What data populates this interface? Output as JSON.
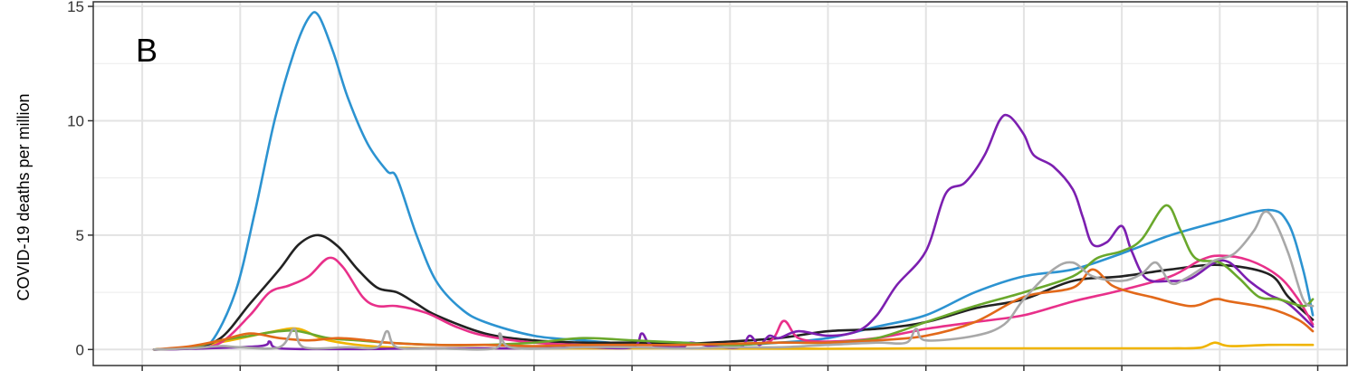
{
  "chart_data": {
    "type": "line",
    "panel_label": "B",
    "title": "",
    "xlabel": "",
    "ylabel": "COVID-19 deaths per million",
    "xlim": [
      0,
      12.8
    ],
    "ylim": [
      -0.7,
      15.2
    ],
    "yticks": [
      0,
      5,
      10,
      15
    ],
    "xticks": [
      0.5,
      1.5,
      2.5,
      3.5,
      4.5,
      5.5,
      6.5,
      7.5,
      8.5,
      9.5,
      10.5,
      11.5,
      12.5
    ],
    "x_tick_labels_shown": false,
    "grid": true,
    "legend": "none",
    "series": [
      {
        "color": "#f0b400",
        "points": [
          [
            0.62,
            0
          ],
          [
            1,
            0.1
          ],
          [
            1.4,
            0.4
          ],
          [
            1.85,
            0.8
          ],
          [
            2.1,
            0.9
          ],
          [
            2.4,
            0.4
          ],
          [
            3,
            0.1
          ],
          [
            4,
            0.05
          ],
          [
            6,
            0.05
          ],
          [
            7.5,
            0.03
          ],
          [
            8.5,
            0.05
          ],
          [
            10,
            0.05
          ],
          [
            11,
            0.05
          ],
          [
            11.3,
            0.08
          ],
          [
            11.45,
            0.3
          ],
          [
            11.6,
            0.15
          ],
          [
            12,
            0.2
          ],
          [
            12.45,
            0.2
          ]
        ]
      },
      {
        "color": "#2c93d1",
        "points": [
          [
            0.62,
            0
          ],
          [
            1,
            0.05
          ],
          [
            1.2,
            0.3
          ],
          [
            1.45,
            2.5
          ],
          [
            1.65,
            6
          ],
          [
            1.85,
            10
          ],
          [
            2.05,
            13
          ],
          [
            2.2,
            14.5
          ],
          [
            2.3,
            14.6
          ],
          [
            2.45,
            13
          ],
          [
            2.6,
            11
          ],
          [
            2.8,
            9
          ],
          [
            3,
            7.8
          ],
          [
            3.1,
            7.5
          ],
          [
            3.3,
            5
          ],
          [
            3.5,
            3
          ],
          [
            3.75,
            1.8
          ],
          [
            4,
            1.2
          ],
          [
            4.5,
            0.6
          ],
          [
            5,
            0.4
          ],
          [
            5.5,
            0.25
          ],
          [
            6,
            0.3
          ],
          [
            6.5,
            0.2
          ],
          [
            7,
            0.3
          ],
          [
            7.5,
            0.5
          ],
          [
            8,
            1
          ],
          [
            8.5,
            1.5
          ],
          [
            9,
            2.5
          ],
          [
            9.5,
            3.2
          ],
          [
            10,
            3.5
          ],
          [
            10.5,
            4.2
          ],
          [
            11,
            5
          ],
          [
            11.5,
            5.6
          ],
          [
            12,
            6.1
          ],
          [
            12.2,
            5.5
          ],
          [
            12.35,
            3.5
          ],
          [
            12.45,
            1.5
          ]
        ]
      },
      {
        "color": "#222222",
        "points": [
          [
            0.62,
            0
          ],
          [
            1,
            0.1
          ],
          [
            1.3,
            0.5
          ],
          [
            1.6,
            2
          ],
          [
            1.9,
            3.5
          ],
          [
            2.1,
            4.6
          ],
          [
            2.3,
            5
          ],
          [
            2.5,
            4.5
          ],
          [
            2.7,
            3.5
          ],
          [
            2.9,
            2.7
          ],
          [
            3.1,
            2.5
          ],
          [
            3.3,
            2
          ],
          [
            3.5,
            1.5
          ],
          [
            4,
            0.7
          ],
          [
            4.5,
            0.4
          ],
          [
            5,
            0.3
          ],
          [
            5.5,
            0.3
          ],
          [
            6,
            0.25
          ],
          [
            6.5,
            0.35
          ],
          [
            7,
            0.5
          ],
          [
            7.5,
            0.8
          ],
          [
            8,
            0.9
          ],
          [
            8.5,
            1.2
          ],
          [
            9,
            1.8
          ],
          [
            9.5,
            2.2
          ],
          [
            10,
            3
          ],
          [
            10.5,
            3.2
          ],
          [
            11,
            3.5
          ],
          [
            11.5,
            3.7
          ],
          [
            12,
            3.3
          ],
          [
            12.2,
            2.3
          ],
          [
            12.45,
            1.3
          ]
        ]
      },
      {
        "color": "#e8308a",
        "points": [
          [
            0.62,
            0
          ],
          [
            1,
            0.05
          ],
          [
            1.3,
            0.3
          ],
          [
            1.6,
            1.5
          ],
          [
            1.8,
            2.5
          ],
          [
            2,
            2.8
          ],
          [
            2.2,
            3.2
          ],
          [
            2.4,
            4
          ],
          [
            2.55,
            3.6
          ],
          [
            2.75,
            2.3
          ],
          [
            2.9,
            1.9
          ],
          [
            3.1,
            1.9
          ],
          [
            3.4,
            1.6
          ],
          [
            3.7,
            1
          ],
          [
            4,
            0.6
          ],
          [
            4.5,
            0.3
          ],
          [
            5,
            0.2
          ],
          [
            5.5,
            0.2
          ],
          [
            6,
            0.2
          ],
          [
            6.5,
            0.25
          ],
          [
            6.9,
            0.35
          ],
          [
            7.05,
            1.25
          ],
          [
            7.2,
            0.5
          ],
          [
            7.5,
            0.35
          ],
          [
            8,
            0.5
          ],
          [
            8.5,
            0.9
          ],
          [
            9,
            1.2
          ],
          [
            9.5,
            1.5
          ],
          [
            10,
            2.1
          ],
          [
            10.5,
            2.6
          ],
          [
            11,
            3.2
          ],
          [
            11.3,
            3.9
          ],
          [
            11.5,
            4.1
          ],
          [
            11.8,
            3.9
          ],
          [
            12.1,
            3.2
          ],
          [
            12.3,
            2.2
          ],
          [
            12.45,
            1.1
          ]
        ]
      },
      {
        "color": "#7c1fb0",
        "points": [
          [
            0.62,
            0
          ],
          [
            1,
            0.03
          ],
          [
            1.7,
            0.15
          ],
          [
            1.8,
            0.35
          ],
          [
            1.9,
            0.05
          ],
          [
            2.5,
            0.02
          ],
          [
            3,
            0.03
          ],
          [
            3.5,
            0.05
          ],
          [
            4,
            0.05
          ],
          [
            4.5,
            0.05
          ],
          [
            5,
            0.1
          ],
          [
            5.5,
            0.1
          ],
          [
            5.6,
            0.7
          ],
          [
            5.7,
            0.2
          ],
          [
            6,
            0.1
          ],
          [
            6.1,
            0.3
          ],
          [
            6.3,
            0.15
          ],
          [
            6.6,
            0.1
          ],
          [
            6.7,
            0.6
          ],
          [
            6.8,
            0.2
          ],
          [
            6.9,
            0.6
          ],
          [
            7,
            0.5
          ],
          [
            7.2,
            0.8
          ],
          [
            7.5,
            0.6
          ],
          [
            7.8,
            0.8
          ],
          [
            8,
            1.5
          ],
          [
            8.2,
            2.8
          ],
          [
            8.5,
            4.3
          ],
          [
            8.7,
            6.8
          ],
          [
            8.9,
            7.3
          ],
          [
            9.1,
            8.5
          ],
          [
            9.25,
            10
          ],
          [
            9.35,
            10.2
          ],
          [
            9.5,
            9.4
          ],
          [
            9.6,
            8.5
          ],
          [
            9.8,
            8
          ],
          [
            10,
            7
          ],
          [
            10.1,
            5.8
          ],
          [
            10.2,
            4.6
          ],
          [
            10.35,
            4.7
          ],
          [
            10.5,
            5.4
          ],
          [
            10.6,
            4.3
          ],
          [
            10.75,
            3.1
          ],
          [
            11,
            3
          ],
          [
            11.2,
            3.1
          ],
          [
            11.45,
            3.8
          ],
          [
            11.6,
            3.8
          ],
          [
            11.8,
            3
          ],
          [
            12,
            2.4
          ],
          [
            12.2,
            2
          ],
          [
            12.45,
            1
          ]
        ]
      },
      {
        "color": "#6aa82c",
        "points": [
          [
            0.62,
            0
          ],
          [
            1,
            0.1
          ],
          [
            1.3,
            0.4
          ],
          [
            1.6,
            0.6
          ],
          [
            1.9,
            0.8
          ],
          [
            2.1,
            0.8
          ],
          [
            2.4,
            0.5
          ],
          [
            2.7,
            0.4
          ],
          [
            3,
            0.3
          ],
          [
            3.5,
            0.2
          ],
          [
            4,
            0.2
          ],
          [
            4.5,
            0.3
          ],
          [
            5,
            0.5
          ],
          [
            5.5,
            0.4
          ],
          [
            6,
            0.3
          ],
          [
            6.5,
            0.2
          ],
          [
            7,
            0.3
          ],
          [
            7.5,
            0.3
          ],
          [
            8,
            0.5
          ],
          [
            8.5,
            1.2
          ],
          [
            9,
            1.9
          ],
          [
            9.5,
            2.5
          ],
          [
            10,
            3.2
          ],
          [
            10.25,
            4
          ],
          [
            10.5,
            4.3
          ],
          [
            10.7,
            4.8
          ],
          [
            10.95,
            6.3
          ],
          [
            11.1,
            5.2
          ],
          [
            11.25,
            4
          ],
          [
            11.5,
            3.8
          ],
          [
            11.7,
            3.1
          ],
          [
            11.9,
            2.3
          ],
          [
            12.1,
            2.2
          ],
          [
            12.35,
            1.9
          ],
          [
            12.45,
            2.2
          ]
        ]
      },
      {
        "color": "#e2691a",
        "points": [
          [
            0.62,
            0
          ],
          [
            1,
            0.15
          ],
          [
            1.3,
            0.4
          ],
          [
            1.6,
            0.7
          ],
          [
            1.9,
            0.5
          ],
          [
            2.2,
            0.4
          ],
          [
            2.5,
            0.5
          ],
          [
            2.8,
            0.4
          ],
          [
            3,
            0.3
          ],
          [
            3.5,
            0.2
          ],
          [
            4,
            0.2
          ],
          [
            4.5,
            0.15
          ],
          [
            5,
            0.2
          ],
          [
            5.5,
            0.2
          ],
          [
            6,
            0.2
          ],
          [
            6.5,
            0.25
          ],
          [
            7,
            0.3
          ],
          [
            7.5,
            0.3
          ],
          [
            8,
            0.4
          ],
          [
            8.5,
            0.6
          ],
          [
            9,
            1.2
          ],
          [
            9.5,
            2.3
          ],
          [
            10,
            2.7
          ],
          [
            10.2,
            3.5
          ],
          [
            10.4,
            2.8
          ],
          [
            10.6,
            2.5
          ],
          [
            10.8,
            2.3
          ],
          [
            11.2,
            1.9
          ],
          [
            11.45,
            2.2
          ],
          [
            11.6,
            2.1
          ],
          [
            12,
            1.8
          ],
          [
            12.3,
            1.3
          ],
          [
            12.45,
            0.8
          ]
        ]
      },
      {
        "color": "#a8a8a8",
        "points": [
          [
            0.62,
            0
          ],
          [
            1,
            0.05
          ],
          [
            1.3,
            0.15
          ],
          [
            1.5,
            0.1
          ],
          [
            1.9,
            0.1
          ],
          [
            2.05,
            0.9
          ],
          [
            2.15,
            0.1
          ],
          [
            2.6,
            0.1
          ],
          [
            2.9,
            0.1
          ],
          [
            3,
            0.8
          ],
          [
            3.1,
            0.1
          ],
          [
            3.5,
            0.05
          ],
          [
            4.1,
            0.05
          ],
          [
            4.15,
            0.7
          ],
          [
            4.25,
            0.1
          ],
          [
            4.7,
            0.05
          ],
          [
            5,
            0.1
          ],
          [
            5.5,
            0.1
          ],
          [
            6,
            0.05
          ],
          [
            6.5,
            0.1
          ],
          [
            7,
            0.1
          ],
          [
            7.5,
            0.2
          ],
          [
            8,
            0.3
          ],
          [
            8.3,
            0.3
          ],
          [
            8.4,
            0.9
          ],
          [
            8.5,
            0.4
          ],
          [
            9,
            0.6
          ],
          [
            9.3,
            1.1
          ],
          [
            9.5,
            2.2
          ],
          [
            9.8,
            3.5
          ],
          [
            10,
            3.8
          ],
          [
            10.2,
            3.2
          ],
          [
            10.5,
            3
          ],
          [
            10.7,
            3.3
          ],
          [
            10.85,
            3.8
          ],
          [
            11,
            2.9
          ],
          [
            11.15,
            3.1
          ],
          [
            11.3,
            3.5
          ],
          [
            11.45,
            3.9
          ],
          [
            11.65,
            4.2
          ],
          [
            11.85,
            5.2
          ],
          [
            11.95,
            6
          ],
          [
            12.05,
            5.7
          ],
          [
            12.2,
            4.2
          ],
          [
            12.35,
            2.2
          ],
          [
            12.45,
            1.9
          ]
        ]
      }
    ]
  }
}
